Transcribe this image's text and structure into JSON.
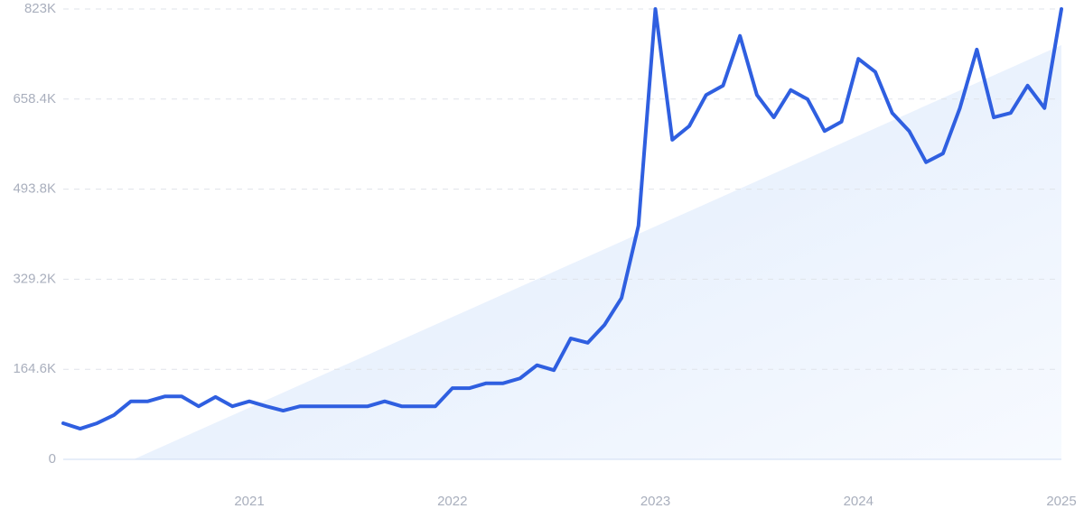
{
  "chart_data": {
    "type": "line",
    "categories": [
      null,
      null,
      null,
      null,
      null,
      null,
      null,
      null,
      null,
      null,
      null,
      "2021",
      null,
      null,
      null,
      null,
      null,
      null,
      null,
      null,
      null,
      null,
      null,
      "2022",
      null,
      null,
      null,
      null,
      null,
      null,
      null,
      null,
      null,
      null,
      null,
      "2023",
      null,
      null,
      null,
      null,
      null,
      null,
      null,
      null,
      null,
      null,
      null,
      "2024",
      null,
      null,
      null,
      null,
      null,
      null,
      null,
      null,
      null,
      null,
      null,
      "2025"
    ],
    "values": [
      66000,
      56000,
      66000,
      81000,
      106000,
      106000,
      115000,
      115000,
      97000,
      114000,
      97000,
      106000,
      97000,
      89000,
      97000,
      97000,
      97000,
      97000,
      97000,
      106000,
      97000,
      97000,
      97000,
      130000,
      130000,
      139000,
      139000,
      148000,
      172000,
      163000,
      221000,
      213000,
      246000,
      295000,
      427000,
      823000,
      584000,
      609000,
      666000,
      683000,
      774000,
      666000,
      625000,
      675000,
      658000,
      600000,
      617000,
      732000,
      708000,
      633000,
      600000,
      543000,
      559000,
      642000,
      749000,
      625000,
      633000,
      683000,
      642000,
      823000
    ],
    "color": "#2f5fe0",
    "ylim": [
      0,
      823000
    ],
    "yticks": [
      0,
      {
        "value": 164600,
        "label": "164.6K"
      },
      {
        "value": 329200,
        "label": "329.2K"
      },
      {
        "value": 493800,
        "label": "493.8K"
      },
      {
        "value": 658400,
        "label": "658.4K"
      },
      {
        "value": 823000,
        "label": "823K"
      }
    ],
    "grid": true
  }
}
